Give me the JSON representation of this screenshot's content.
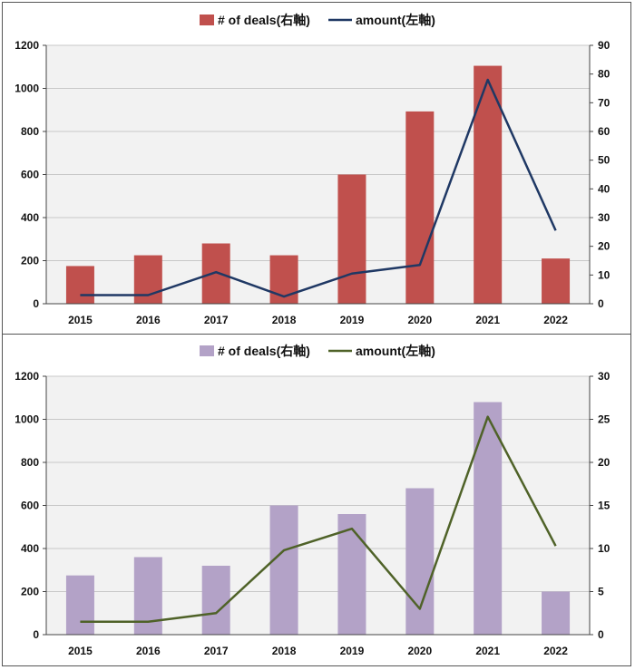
{
  "chart_data": [
    {
      "type": "bar",
      "categories": [
        "2015",
        "2016",
        "2017",
        "2018",
        "2019",
        "2020",
        "2021",
        "2022"
      ],
      "series": [
        {
          "name": "# of deals(右軸)",
          "kind": "bar",
          "axis": "left",
          "color": "#c0504d",
          "values": [
            175,
            225,
            280,
            225,
            600,
            893,
            1105,
            210
          ]
        },
        {
          "name": "amount(左軸)",
          "kind": "line",
          "axis": "right",
          "color": "#1f3864",
          "values": [
            3,
            3,
            11,
            2.5,
            10.5,
            13.5,
            78,
            25.5
          ]
        }
      ],
      "left_axis": {
        "min": 0,
        "max": 1200,
        "step": 200
      },
      "right_axis": {
        "min": 0,
        "max": 90,
        "step": 10
      },
      "legend_position": "top-center",
      "grid": true
    },
    {
      "type": "bar",
      "categories": [
        "2015",
        "2016",
        "2017",
        "2018",
        "2019",
        "2020",
        "2021",
        "2022"
      ],
      "series": [
        {
          "name": "# of deals(右軸)",
          "kind": "bar",
          "axis": "left",
          "color": "#b3a2c7",
          "values": [
            275,
            360,
            320,
            600,
            560,
            680,
            1080,
            200
          ]
        },
        {
          "name": "amount(左軸)",
          "kind": "line",
          "axis": "right",
          "color": "#4f6228",
          "values": [
            1.5,
            1.5,
            2.5,
            9.8,
            12.3,
            3,
            25.3,
            10.3
          ]
        }
      ],
      "left_axis": {
        "min": 0,
        "max": 1200,
        "step": 200
      },
      "right_axis": {
        "min": 0,
        "max": 30,
        "step": 5
      },
      "legend_position": "top-center",
      "grid": true
    }
  ]
}
